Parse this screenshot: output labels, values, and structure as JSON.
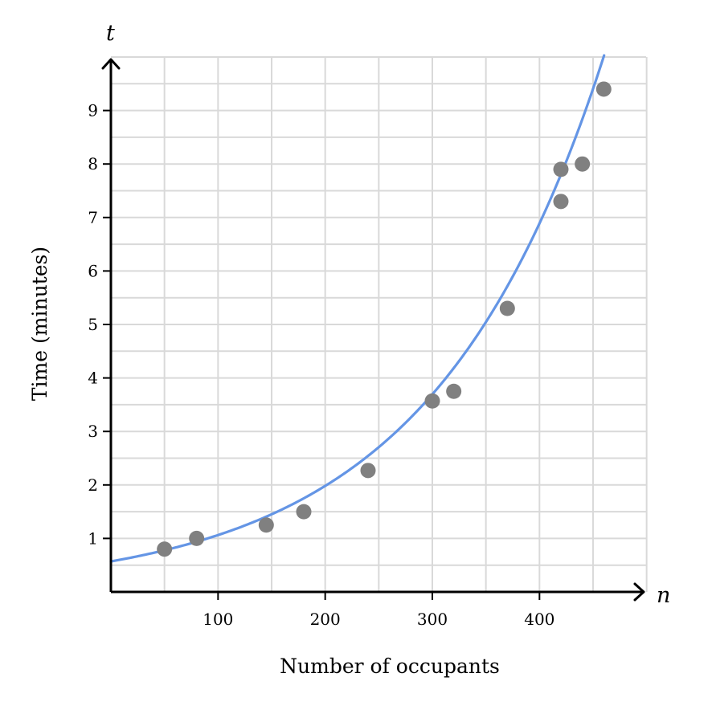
{
  "chart_data": {
    "type": "scatter",
    "xlabel": "Number of occupants",
    "ylabel": "Time (minutes)",
    "x_var": "n",
    "y_var": "t",
    "xlim": [
      0,
      500
    ],
    "ylim": [
      0,
      10
    ],
    "x_ticks": [
      100,
      200,
      300,
      400
    ],
    "y_ticks": [
      1,
      2,
      3,
      4,
      5,
      6,
      7,
      8,
      9
    ],
    "x_tick_labels": [
      "100",
      "200",
      "300",
      "400"
    ],
    "y_tick_labels": [
      "1",
      "2",
      "3",
      "4",
      "5",
      "6",
      "7",
      "8",
      "9"
    ],
    "grid": true,
    "x_grid_step": 50,
    "y_grid_step": 0.5,
    "points": [
      {
        "x": 50,
        "y": 0.8
      },
      {
        "x": 80,
        "y": 1.0
      },
      {
        "x": 145,
        "y": 1.25
      },
      {
        "x": 180,
        "y": 1.5
      },
      {
        "x": 240,
        "y": 2.27
      },
      {
        "x": 300,
        "y": 3.57
      },
      {
        "x": 320,
        "y": 3.75
      },
      {
        "x": 370,
        "y": 5.3
      },
      {
        "x": 420,
        "y": 7.3
      },
      {
        "x": 420,
        "y": 7.9
      },
      {
        "x": 440,
        "y": 8.0
      },
      {
        "x": 460,
        "y": 9.4
      }
    ],
    "fit_curve": {
      "type": "exponential",
      "a": 0.57,
      "b": 0.00623
    },
    "colors": {
      "points": "#808080",
      "curve": "#6495e5",
      "grid": "#d9d9d9",
      "axis": "#000000"
    }
  }
}
